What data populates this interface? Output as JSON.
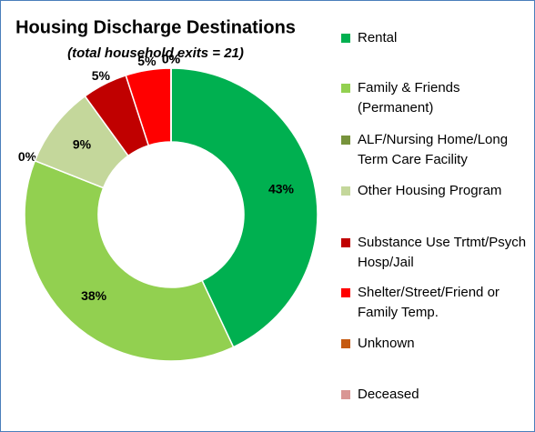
{
  "chart_data": {
    "type": "donut",
    "title": "Housing Discharge Destinations",
    "subtitle": "(total household exits = 21)",
    "categories": [
      "Rental",
      "Family & Friends (Permanent)",
      "ALF/Nursing Home/Long Term Care Facility",
      "Other Housing Program",
      "Substance Use Trtmt/Psych Hosp/Jail",
      "Shelter/Street/Friend or Family Temp.",
      "Unknown",
      "Deceased"
    ],
    "values": [
      43,
      38,
      0,
      9,
      5,
      5,
      0,
      0
    ],
    "value_labels": [
      "43%",
      "38%",
      "0%",
      "9%",
      "5%",
      "5%",
      "0%",
      "0%"
    ],
    "colors": [
      "#00b050",
      "#92d050",
      "#77933c",
      "#c4d79b",
      "#c00000",
      "#ff0000",
      "#c55a11",
      "#d99694"
    ],
    "legend": "right"
  }
}
